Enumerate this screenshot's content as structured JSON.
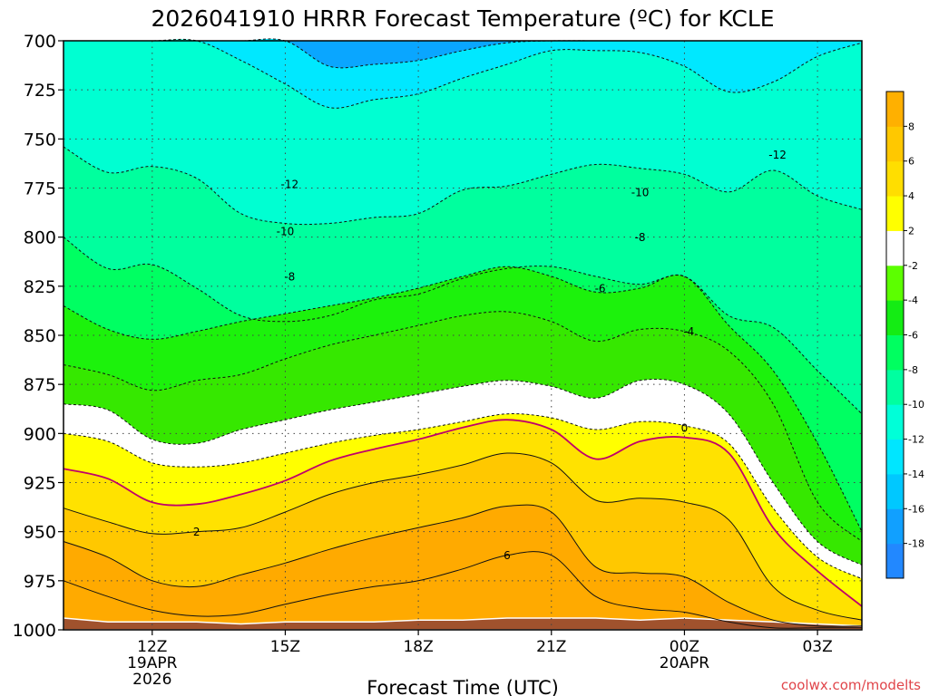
{
  "chart_data": {
    "type": "contour",
    "title": "2026041910 HRRR Forecast Temperature (ºC) for KCLE",
    "xlabel": "Forecast Time (UTC)",
    "ylabel": "",
    "credit": "coolwx.com/modelts",
    "y_axis": {
      "range": [
        700,
        1000
      ],
      "inverted": true,
      "ticks": [
        "700",
        "725",
        "750",
        "775",
        "800",
        "825",
        "850",
        "875",
        "900",
        "925",
        "950",
        "975",
        "1000"
      ]
    },
    "x_axis": {
      "range": [
        10,
        28
      ],
      "ticks": [
        {
          "x": 12,
          "label": "12Z",
          "sub": [
            "19APR",
            "2026"
          ]
        },
        {
          "x": 15,
          "label": "15Z",
          "sub": []
        },
        {
          "x": 18,
          "label": "18Z",
          "sub": []
        },
        {
          "x": 21,
          "label": "21Z",
          "sub": []
        },
        {
          "x": 24,
          "label": "00Z",
          "sub": [
            "20APR"
          ]
        },
        {
          "x": 27,
          "label": "03Z",
          "sub": []
        }
      ]
    },
    "times": [
      10.0,
      11.0,
      12.0,
      13.0,
      14.0,
      15.0,
      16.0,
      17.0,
      18.0,
      19.0,
      20.0,
      21.0,
      22.0,
      23.0,
      24.0,
      25.0,
      26.0,
      27.0,
      28.0
    ],
    "contours": [
      {
        "level": -18,
        "p": [
          700,
          700,
          700,
          700,
          700,
          700,
          700,
          700,
          700,
          700,
          700,
          700,
          700,
          700,
          700,
          700,
          700,
          700,
          700
        ]
      },
      {
        "level": -16,
        "p": [
          700,
          700,
          700,
          700,
          700,
          700,
          713,
          712,
          710,
          705,
          701,
          700,
          700,
          700,
          700,
          700,
          700,
          700,
          700
        ]
      },
      {
        "level": -14,
        "p": [
          700,
          700,
          700,
          700,
          710,
          722,
          734,
          730,
          727,
          719,
          712,
          705,
          705,
          706,
          713,
          726,
          721,
          708,
          701
        ]
      },
      {
        "level": -12,
        "p": [
          754,
          767,
          764,
          770,
          788,
          793,
          793,
          790,
          788,
          776,
          774,
          768,
          763,
          765,
          768,
          777,
          766,
          779,
          786
        ]
      },
      {
        "level": -10,
        "p": [
          800,
          816,
          814,
          826,
          840,
          843,
          840,
          832,
          829,
          821,
          816,
          815,
          820,
          824,
          820,
          840,
          846,
          868,
          890
        ]
      },
      {
        "level": -8,
        "p": [
          835,
          847,
          852,
          848,
          843,
          839,
          835,
          831,
          826,
          820,
          815,
          820,
          828,
          826,
          820,
          845,
          868,
          905,
          950
        ]
      },
      {
        "level": -6,
        "p": [
          865,
          870,
          878,
          873,
          870,
          862,
          855,
          850,
          845,
          840,
          838,
          843,
          853,
          847,
          848,
          858,
          885,
          935,
          955
        ]
      },
      {
        "level": -4,
        "p": [
          885,
          888,
          903,
          905,
          898,
          893,
          888,
          884,
          880,
          876,
          873,
          876,
          882,
          873,
          875,
          890,
          925,
          955,
          967
        ]
      },
      {
        "level": -2,
        "p": [
          900,
          904,
          915,
          917,
          915,
          910,
          905,
          901,
          898,
          894,
          890,
          892,
          898,
          894,
          896,
          905,
          938,
          963,
          974
        ]
      },
      {
        "level": 0,
        "p": [
          918,
          923,
          935,
          936,
          931,
          924,
          914,
          908,
          903,
          897,
          893,
          898,
          913,
          904,
          902,
          910,
          948,
          970,
          988
        ]
      },
      {
        "level": 2,
        "p": [
          938,
          945,
          951,
          950,
          948,
          940,
          931,
          925,
          921,
          916,
          910,
          915,
          934,
          933,
          935,
          944,
          978,
          990,
          995
        ]
      },
      {
        "level": 4,
        "p": [
          955,
          963,
          975,
          978,
          972,
          966,
          959,
          953,
          948,
          943,
          937,
          940,
          968,
          971,
          973,
          986,
          995,
          998,
          998
        ]
      },
      {
        "level": 6,
        "p": [
          975,
          983,
          990,
          993,
          992,
          987,
          982,
          978,
          975,
          969,
          962,
          962,
          983,
          989,
          991,
          996,
          999,
          999,
          999
        ]
      }
    ],
    "contour_labels": [
      {
        "level": -12,
        "x": 15.1,
        "p": 773,
        "text": "-12"
      },
      {
        "level": -12,
        "x": 26.1,
        "p": 758,
        "text": "-12"
      },
      {
        "level": -10,
        "x": 15.0,
        "p": 797,
        "text": "-10"
      },
      {
        "level": -10,
        "x": 23.0,
        "p": 777,
        "text": "-10"
      },
      {
        "level": -8,
        "x": 15.1,
        "p": 820,
        "text": "-8"
      },
      {
        "level": -8,
        "x": 23.0,
        "p": 800,
        "text": "-8"
      },
      {
        "level": -6,
        "x": 22.1,
        "p": 826,
        "text": "-6"
      },
      {
        "level": -4,
        "x": 24.1,
        "p": 848,
        "text": "-4"
      },
      {
        "level": 0,
        "x": 24.0,
        "p": 897,
        "text": "0"
      },
      {
        "level": 2,
        "x": 13.0,
        "p": 950,
        "text": "2"
      },
      {
        "level": 6,
        "x": 20.0,
        "p": 962,
        "text": "6"
      }
    ],
    "surface_p": [
      994,
      996,
      996,
      996,
      997,
      996,
      996,
      996,
      995,
      995,
      994,
      994,
      994,
      995,
      994,
      995,
      996,
      997,
      998
    ],
    "colorbar": {
      "levels": [
        -18,
        -16,
        -14,
        -12,
        -10,
        -8,
        -6,
        -4,
        -2,
        2,
        4,
        6,
        8
      ],
      "labels": [
        "8",
        "6",
        "4",
        "2",
        "-2",
        "-4",
        "-6",
        "-8",
        "-10",
        "-12",
        "-14",
        "-16",
        "-18"
      ],
      "colors": [
        "#2288ff",
        "#11a0ff",
        "#00c8ff",
        "#00e6ff",
        "#00ffd8",
        "#00ffa0",
        "#00ff60",
        "#14ec14",
        "#5cff00",
        "#ffffff",
        "#ffff00",
        "#ffde00",
        "#ffc800",
        "#ffb000"
      ]
    },
    "band_colors": [
      "#1a7cff",
      "#0aa6ff",
      "#00e8ff",
      "#00ffd2",
      "#00ff9e",
      "#00ff62",
      "#1cf20c",
      "#36e800",
      "#ffffff",
      "#ffff00",
      "#ffe200",
      "#ffc800",
      "#ffaa00"
    ],
    "surface_color": "#a0522d",
    "zero_line_color": "#c0006a"
  }
}
